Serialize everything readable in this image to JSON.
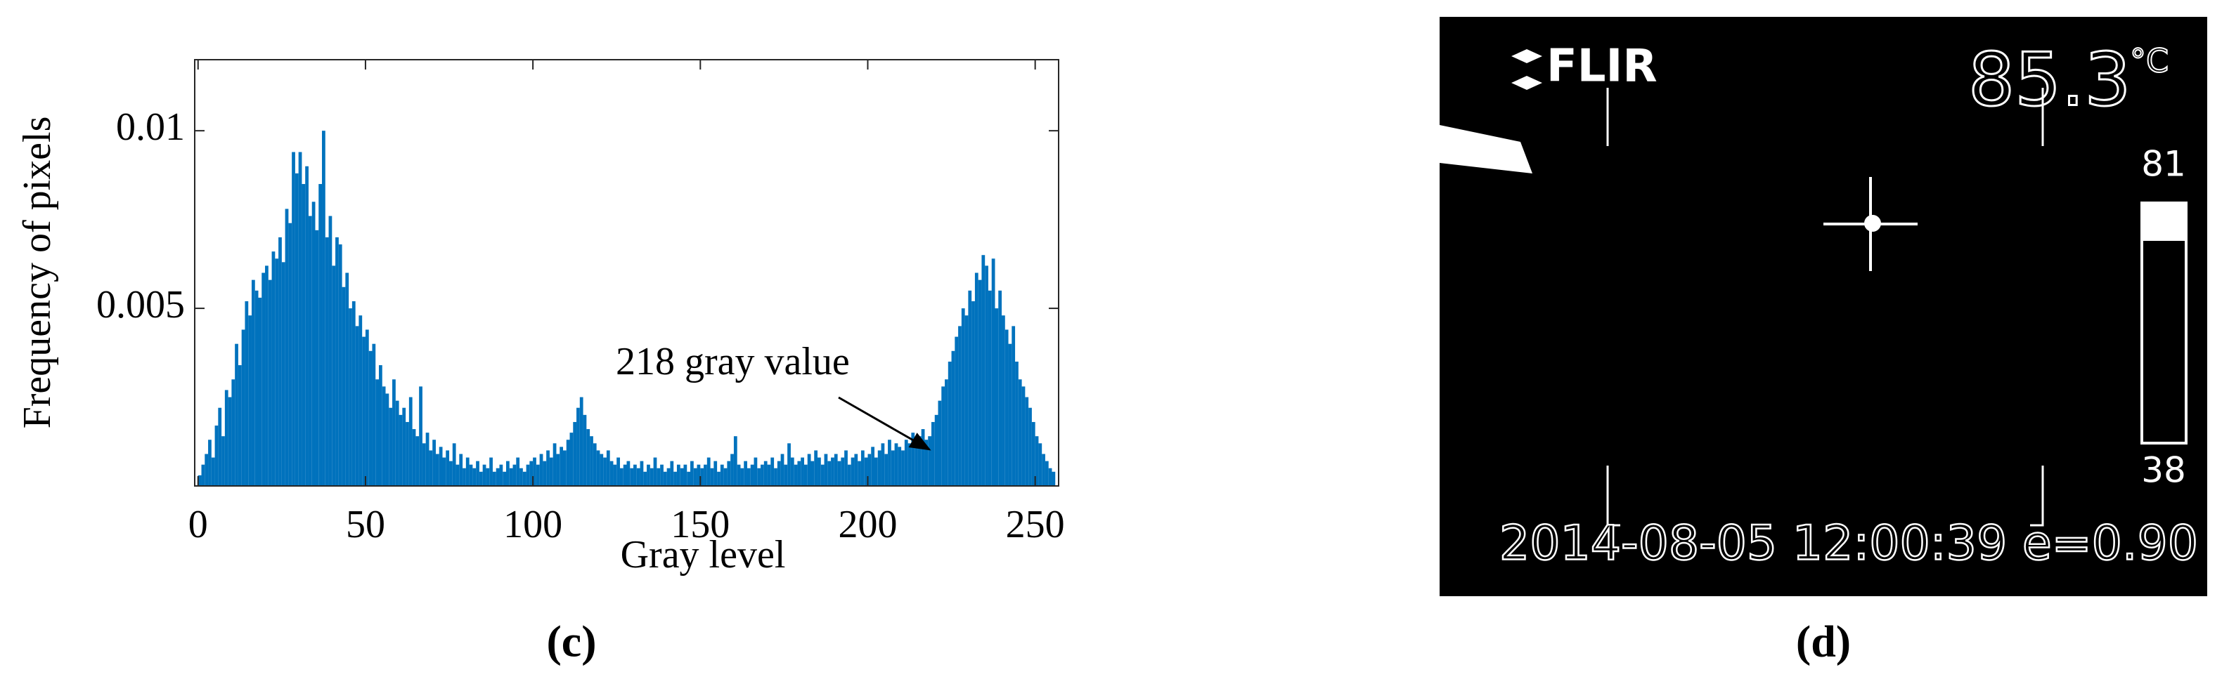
{
  "chart_data": {
    "type": "histogram",
    "xlabel": "Gray level",
    "ylabel": "Frequency of pixels",
    "annotation": "218 gray value",
    "color": "#0072bd",
    "bins": [
      0,
      1,
      2,
      3,
      4,
      5,
      6,
      7,
      8,
      9,
      10,
      11,
      12,
      13,
      14,
      15,
      16,
      17,
      18,
      19,
      20,
      21,
      22,
      23,
      24,
      25,
      26,
      27,
      28,
      29,
      30,
      31,
      32,
      33,
      34,
      35,
      36,
      37,
      38,
      39,
      40,
      41,
      42,
      43,
      44,
      45,
      46,
      47,
      48,
      49,
      50,
      51,
      52,
      53,
      54,
      55,
      56,
      57,
      58,
      59,
      60,
      61,
      62,
      63,
      64,
      65,
      66,
      67,
      68,
      69,
      70,
      71,
      72,
      73,
      74,
      75,
      76,
      77,
      78,
      79,
      80,
      81,
      82,
      83,
      84,
      85,
      86,
      87,
      88,
      89,
      90,
      91,
      92,
      93,
      94,
      95,
      96,
      97,
      98,
      99,
      100,
      101,
      102,
      103,
      104,
      105,
      106,
      107,
      108,
      109,
      110,
      111,
      112,
      113,
      114,
      115,
      116,
      117,
      118,
      119,
      120,
      121,
      122,
      123,
      124,
      125,
      126,
      127,
      128,
      129,
      130,
      131,
      132,
      133,
      134,
      135,
      136,
      137,
      138,
      139,
      140,
      141,
      142,
      143,
      144,
      145,
      146,
      147,
      148,
      149,
      150,
      151,
      152,
      153,
      154,
      155,
      156,
      157,
      158,
      159,
      160,
      161,
      162,
      163,
      164,
      165,
      166,
      167,
      168,
      169,
      170,
      171,
      172,
      173,
      174,
      175,
      176,
      177,
      178,
      179,
      180,
      181,
      182,
      183,
      184,
      185,
      186,
      187,
      188,
      189,
      190,
      191,
      192,
      193,
      194,
      195,
      196,
      197,
      198,
      199,
      200,
      201,
      202,
      203,
      204,
      205,
      206,
      207,
      208,
      209,
      210,
      211,
      212,
      213,
      214,
      215,
      216,
      217,
      218,
      219,
      220,
      221,
      222,
      223,
      224,
      225,
      226,
      227,
      228,
      229,
      230,
      231,
      232,
      233,
      234,
      235,
      236,
      237,
      238,
      239,
      240,
      241,
      242,
      243,
      244,
      245,
      246,
      247,
      248,
      249,
      250,
      251,
      252,
      253,
      254,
      255,
      256
    ],
    "values": [
      0.0003,
      0.0006,
      0.0009,
      0.0013,
      0.0008,
      0.0017,
      0.0022,
      0.0014,
      0.0027,
      0.0025,
      0.003,
      0.004,
      0.0034,
      0.0044,
      0.0052,
      0.0048,
      0.0058,
      0.0055,
      0.0053,
      0.006,
      0.0062,
      0.0058,
      0.0066,
      0.0064,
      0.007,
      0.0063,
      0.0078,
      0.0074,
      0.0094,
      0.0088,
      0.0094,
      0.0085,
      0.009,
      0.0076,
      0.008,
      0.0072,
      0.0085,
      0.01,
      0.007,
      0.0076,
      0.0062,
      0.007,
      0.0068,
      0.0056,
      0.006,
      0.005,
      0.0052,
      0.0045,
      0.0048,
      0.0042,
      0.0044,
      0.0038,
      0.004,
      0.003,
      0.0034,
      0.0028,
      0.0026,
      0.0022,
      0.003,
      0.0024,
      0.002,
      0.0022,
      0.0018,
      0.0025,
      0.0016,
      0.0014,
      0.0028,
      0.0012,
      0.0015,
      0.001,
      0.0013,
      0.0009,
      0.0011,
      0.0008,
      0.001,
      0.0007,
      0.0012,
      0.0006,
      0.0009,
      0.0005,
      0.0008,
      0.0006,
      0.0005,
      0.0007,
      0.0004,
      0.0006,
      0.0005,
      0.0008,
      0.0004,
      0.0005,
      0.0006,
      0.0004,
      0.0007,
      0.0005,
      0.0006,
      0.0008,
      0.0005,
      0.0004,
      0.0006,
      0.0007,
      0.0008,
      0.0006,
      0.0009,
      0.0007,
      0.001,
      0.0008,
      0.0012,
      0.0009,
      0.0011,
      0.001,
      0.0013,
      0.0015,
      0.0018,
      0.0022,
      0.0025,
      0.002,
      0.0016,
      0.0014,
      0.0012,
      0.001,
      0.0009,
      0.0008,
      0.001,
      0.0007,
      0.0006,
      0.0008,
      0.0005,
      0.0006,
      0.0007,
      0.0005,
      0.0006,
      0.0005,
      0.0007,
      0.0004,
      0.0006,
      0.0005,
      0.0008,
      0.0005,
      0.0006,
      0.0004,
      0.0005,
      0.0007,
      0.0004,
      0.0006,
      0.0005,
      0.0006,
      0.0004,
      0.0007,
      0.0005,
      0.0006,
      0.0005,
      0.0006,
      0.0008,
      0.0005,
      0.0007,
      0.0004,
      0.0006,
      0.0005,
      0.0007,
      0.0009,
      0.0014,
      0.0006,
      0.0005,
      0.0007,
      0.0005,
      0.0006,
      0.0008,
      0.0005,
      0.0006,
      0.0007,
      0.0006,
      0.0008,
      0.0005,
      0.0007,
      0.0009,
      0.0006,
      0.0012,
      0.0008,
      0.0006,
      0.0007,
      0.0008,
      0.0006,
      0.0009,
      0.0007,
      0.001,
      0.0008,
      0.0006,
      0.0009,
      0.0007,
      0.0008,
      0.0009,
      0.0007,
      0.0008,
      0.001,
      0.0006,
      0.0008,
      0.0009,
      0.0007,
      0.001,
      0.0008,
      0.0009,
      0.0011,
      0.0008,
      0.001,
      0.0012,
      0.0009,
      0.0013,
      0.001,
      0.0012,
      0.0011,
      0.001,
      0.0013,
      0.0012,
      0.0015,
      0.0011,
      0.0014,
      0.0016,
      0.0013,
      0.0014,
      0.0018,
      0.002,
      0.0024,
      0.0028,
      0.003,
      0.0035,
      0.0038,
      0.0042,
      0.0045,
      0.005,
      0.0048,
      0.0055,
      0.0052,
      0.006,
      0.0058,
      0.0065,
      0.0062,
      0.0055,
      0.0064,
      0.005,
      0.0055,
      0.0048,
      0.0044,
      0.004,
      0.0045,
      0.0035,
      0.003,
      0.0028,
      0.0025,
      0.0022,
      0.0018,
      0.0014,
      0.0012,
      0.0009,
      0.0007,
      0.0005,
      0.0004
    ],
    "xlim": [
      -1,
      257
    ],
    "ylim": [
      0,
      0.012
    ],
    "xticks": [
      0,
      50,
      100,
      150,
      200,
      250
    ],
    "yticks": [
      0.005,
      0.01
    ],
    "grid": false,
    "caption": "(c)"
  },
  "thermal_image": {
    "logo": "FLIR",
    "temperature": "85.3",
    "unit": "°C",
    "scale_max": "81",
    "scale_min": "38",
    "timestamp": "2014-08-05 12:00:39 e=0.90",
    "caption": "(d)"
  }
}
